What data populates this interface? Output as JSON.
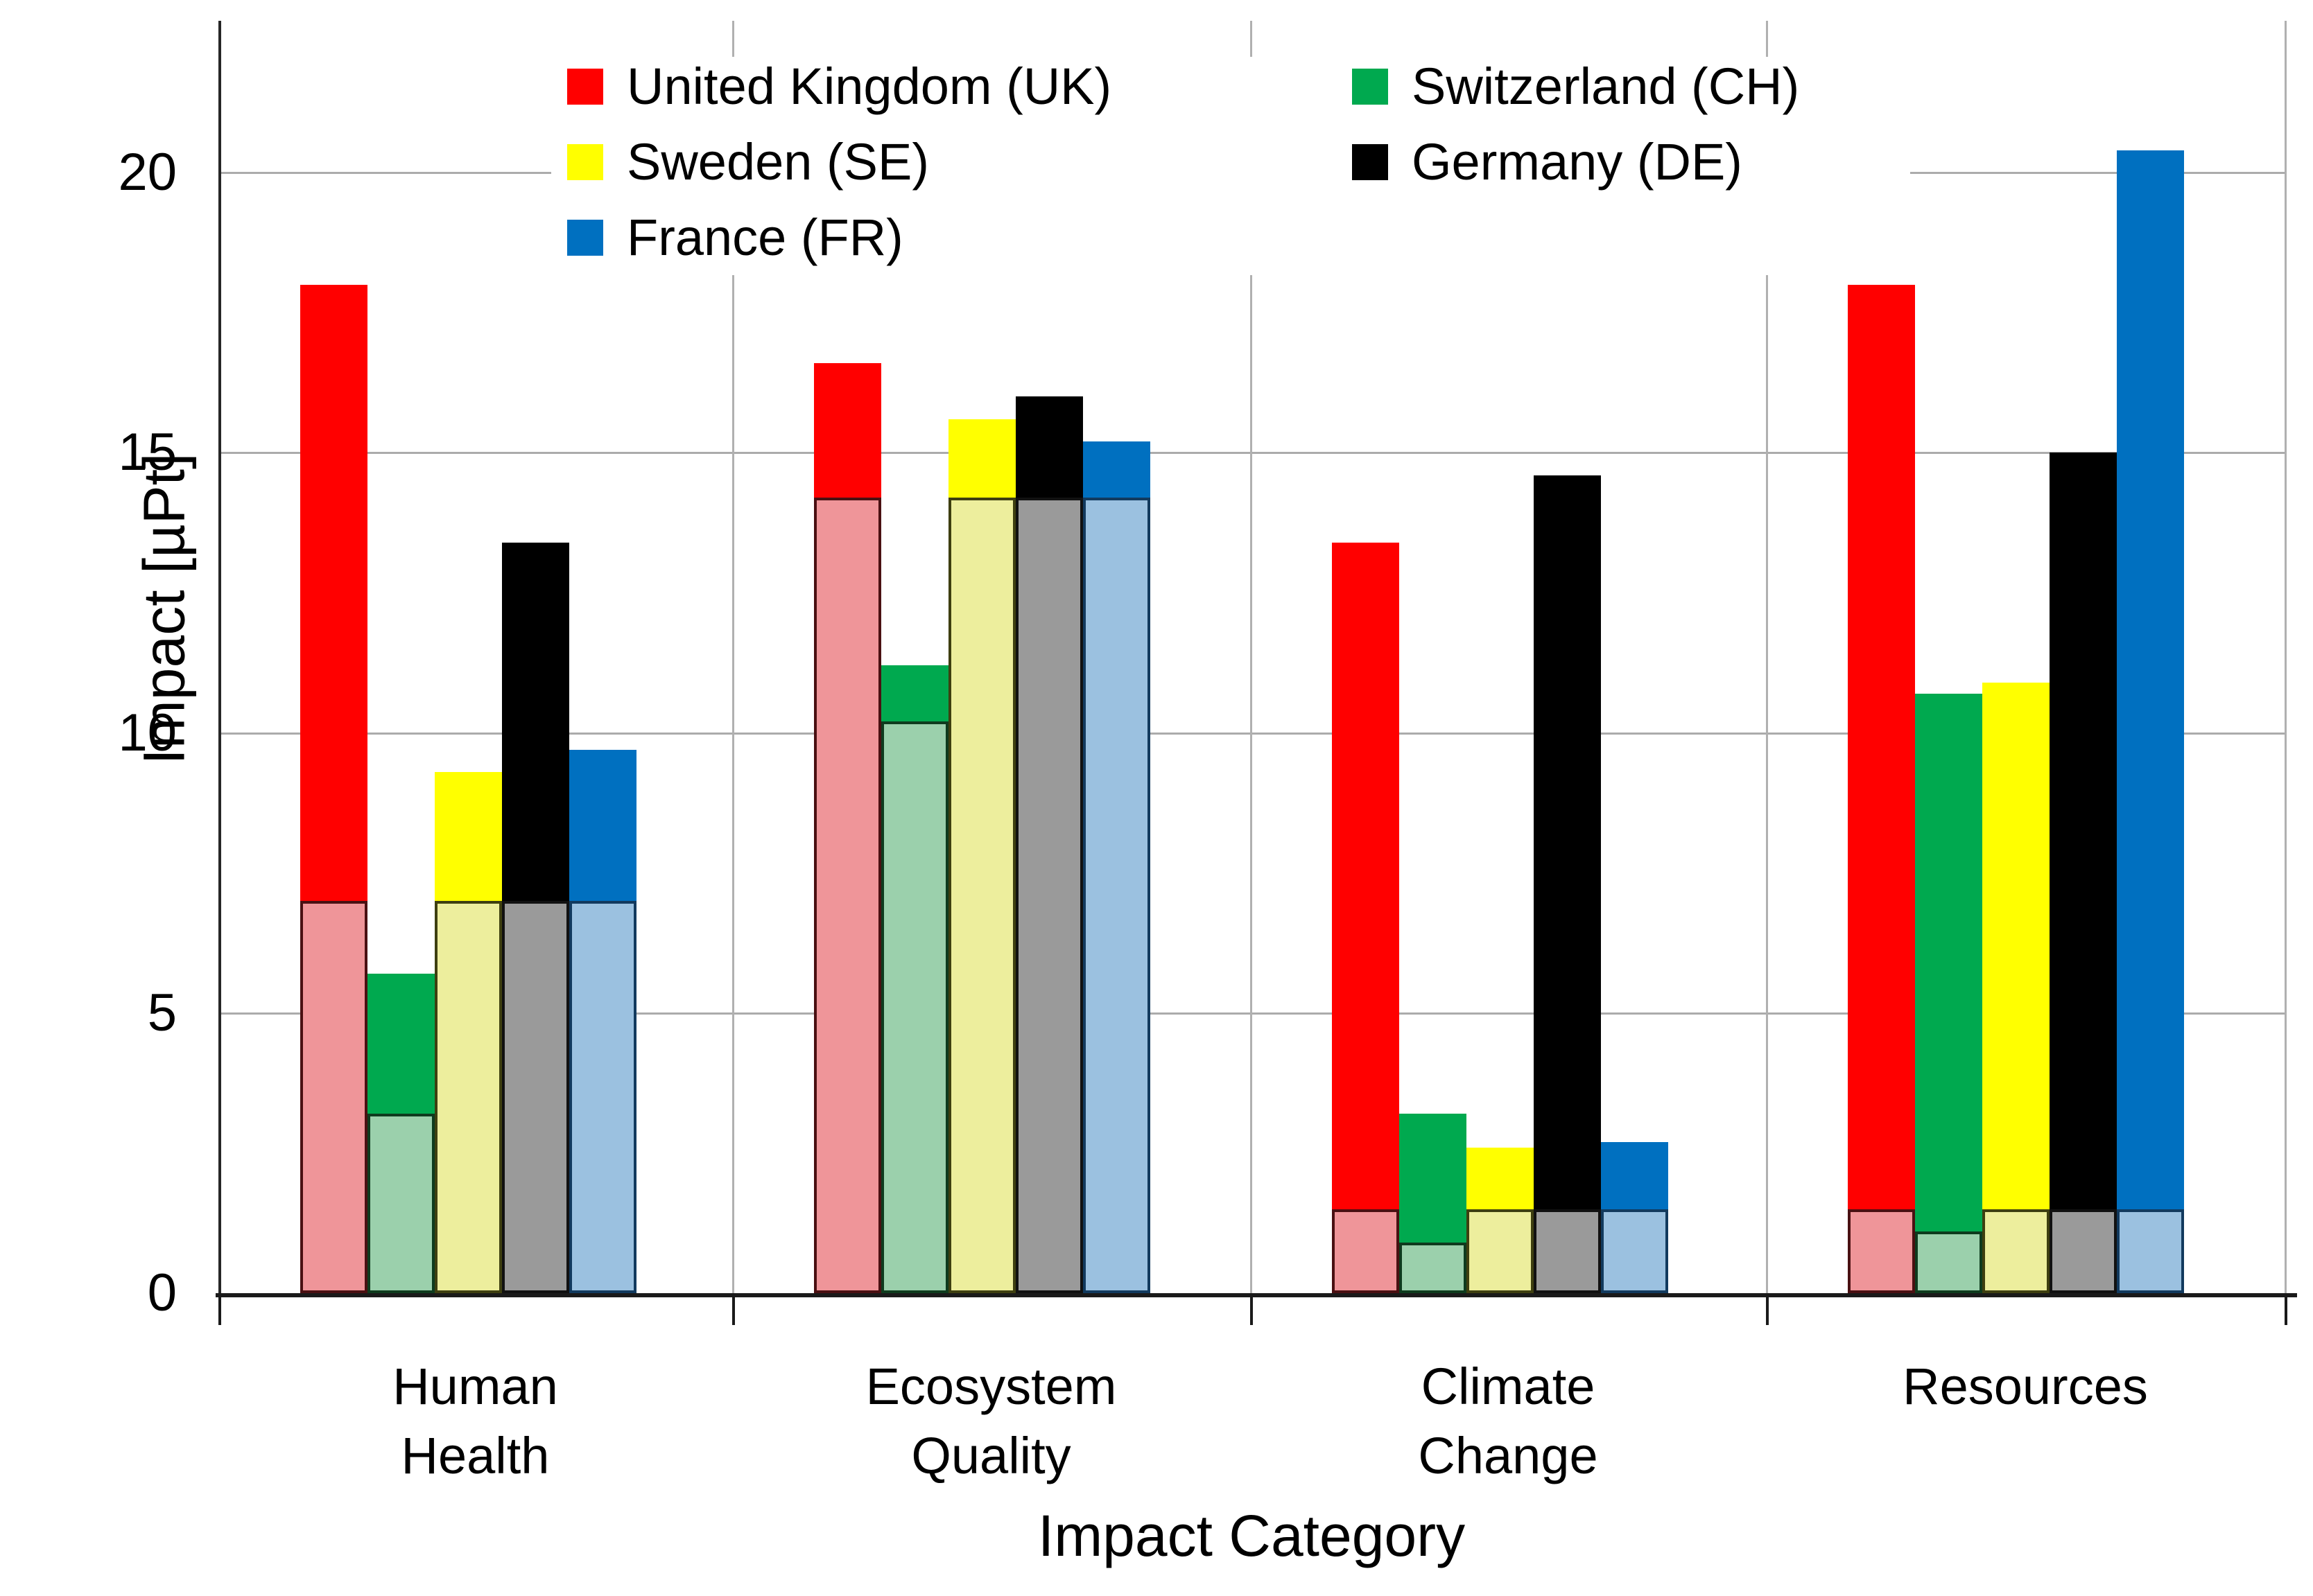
{
  "chart_data": {
    "type": "bar",
    "title": "",
    "xlabel": "Impact Category",
    "ylabel": "Impact [µPt]",
    "unit": "µPt",
    "ylim": [
      0,
      22.5
    ],
    "y_ticks": [
      "0",
      "5",
      "10",
      "15",
      "20"
    ],
    "grid": "horizontal gridlines at 5,10,15,20 plus light vertical category separators",
    "legend_position": "top-inside, two columns",
    "categories": [
      "Human Health",
      "Ecosystem Quality",
      "Climate Change",
      "Resources"
    ],
    "category_lines": [
      [
        "Human",
        "Health"
      ],
      [
        "Ecosystem",
        "Quality"
      ],
      [
        "Climate",
        "Change"
      ],
      [
        "Resources"
      ]
    ],
    "note": "Each country shows a tall solid bar (total) with a pale outlined bar overlaid at its base (partial value).",
    "series": [
      {
        "name": "United Kingdom (UK)",
        "code": "UK",
        "color": "#ff0000",
        "overlay_color": "#ef9599",
        "overlay_border": "#4a1012",
        "values": [
          18.0,
          16.6,
          13.4,
          18.0
        ],
        "overlay_values": [
          7.0,
          14.2,
          1.5,
          1.5
        ]
      },
      {
        "name": "Switzerland (CH)",
        "code": "CH",
        "color": "#00a94f",
        "overlay_color": "#9bd0ac",
        "overlay_border": "#0e3b1e",
        "values": [
          5.7,
          11.2,
          3.2,
          10.7
        ],
        "overlay_values": [
          3.2,
          10.2,
          0.9,
          1.1
        ]
      },
      {
        "name": "Sweden (SE)",
        "code": "SE",
        "color": "#ffff00",
        "overlay_color": "#edee9d",
        "overlay_border": "#3e3f10",
        "values": [
          9.3,
          15.6,
          2.6,
          10.9
        ],
        "overlay_values": [
          7.0,
          14.2,
          1.5,
          1.5
        ]
      },
      {
        "name": "Germany (DE)",
        "code": "DE",
        "color": "#000000",
        "overlay_color": "#9a9a9a",
        "overlay_border": "#111111",
        "values": [
          13.4,
          16.0,
          14.6,
          15.0
        ],
        "overlay_values": [
          7.0,
          14.2,
          1.5,
          1.5
        ]
      },
      {
        "name": "France (FR)",
        "code": "FR",
        "color": "#0070c0",
        "overlay_color": "#9bc1e0",
        "overlay_border": "#123a5e",
        "values": [
          9.7,
          15.2,
          2.7,
          20.4
        ],
        "overlay_values": [
          7.0,
          14.2,
          1.5,
          1.5
        ]
      }
    ],
    "legend_columns": [
      [
        0,
        2,
        4
      ],
      [
        1,
        3
      ]
    ]
  }
}
